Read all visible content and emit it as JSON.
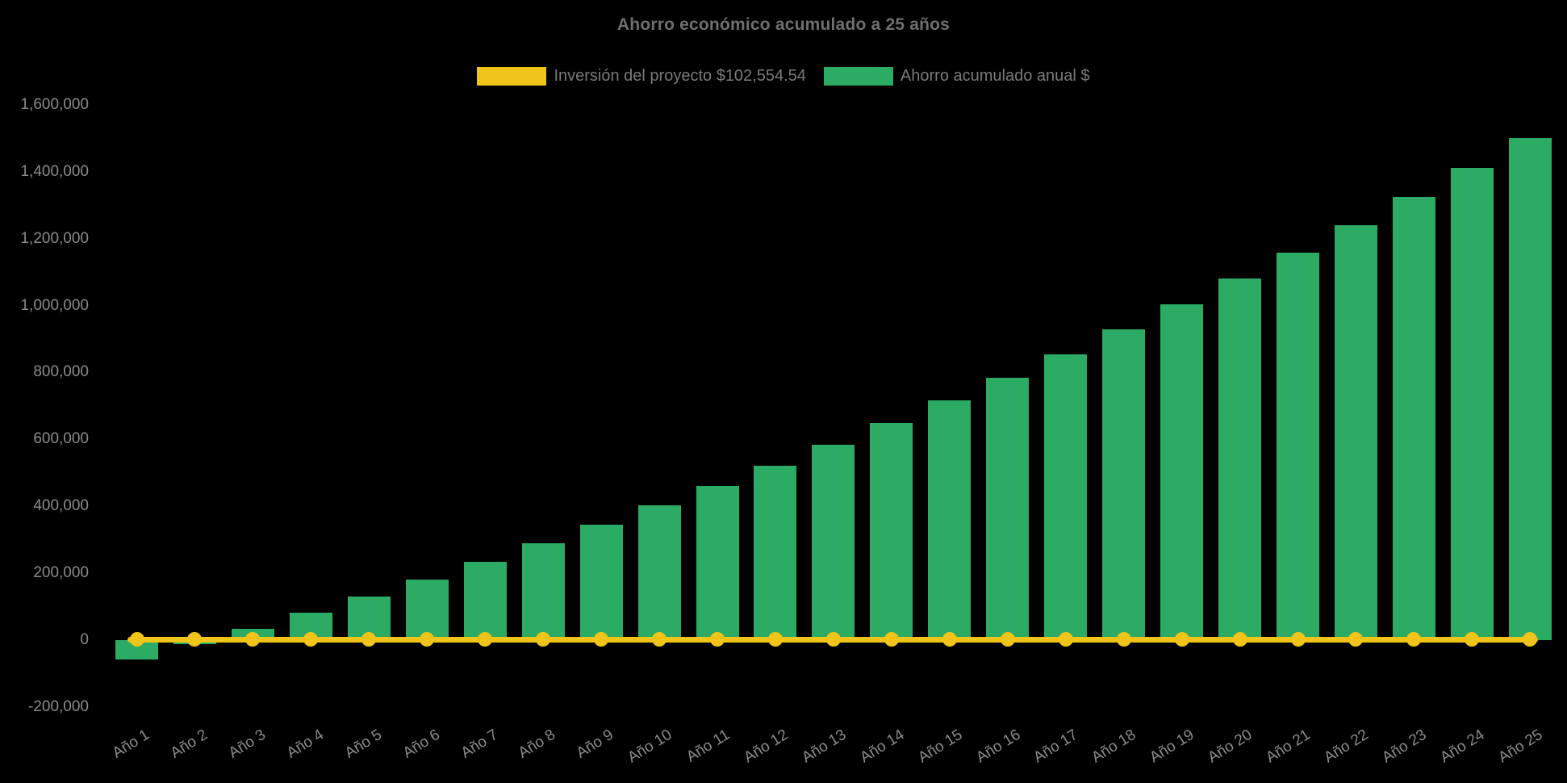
{
  "legend": {
    "investment_label": "Inversión del proyecto $102,554.54",
    "savings_label": "Ahorro acumulado anual $"
  },
  "chart_data": {
    "type": "bar",
    "title": "Ahorro económico acumulado a 25 años",
    "xlabel": "",
    "ylabel": "",
    "ylim": [
      -200000,
      1600000
    ],
    "ytick_step": 200000,
    "grid": false,
    "legend_position": "top",
    "background": "#000000",
    "text_color": "#8b8b8b",
    "categories": [
      "Año 1",
      "Año 2",
      "Año 3",
      "Año 4",
      "Año 5",
      "Año 6",
      "Año 7",
      "Año 8",
      "Año 9",
      "Año 10",
      "Año 11",
      "Año 12",
      "Año 13",
      "Año 14",
      "Año 15",
      "Año 16",
      "Año 17",
      "Año 18",
      "Año 19",
      "Año 20",
      "Año 21",
      "Año 22",
      "Año 23",
      "Año 24",
      "Año 25"
    ],
    "yticks": [
      {
        "value": 1600000,
        "label": "1,600,000"
      },
      {
        "value": 1400000,
        "label": "1,400,000"
      },
      {
        "value": 1200000,
        "label": "1,200,000"
      },
      {
        "value": 1000000,
        "label": "1,000,000"
      },
      {
        "value": 800000,
        "label": "800,000"
      },
      {
        "value": 600000,
        "label": "600,000"
      },
      {
        "value": 400000,
        "label": "400,000"
      },
      {
        "value": 200000,
        "label": "200,000"
      },
      {
        "value": 0,
        "label": "0"
      },
      {
        "value": -200000,
        "label": "-200,000"
      }
    ],
    "series": [
      {
        "name": "Ahorro acumulado anual $",
        "type": "bar",
        "color": "#2bab63",
        "values": [
          -58555,
          -13235,
          33445,
          81525,
          131047,
          182055,
          234594,
          288708,
          344446,
          401856,
          460988,
          521895,
          584628,
          649244,
          715798,
          784348,
          854955,
          927680,
          1002588,
          1079742,
          1159211,
          1241064,
          1325372,
          1412210,
          1501653
        ]
      },
      {
        "name": "Inversión del proyecto $102,554.54",
        "type": "line",
        "color": "#f0c419",
        "legend_value": 102554.54,
        "plotted_value": 0
      }
    ]
  }
}
